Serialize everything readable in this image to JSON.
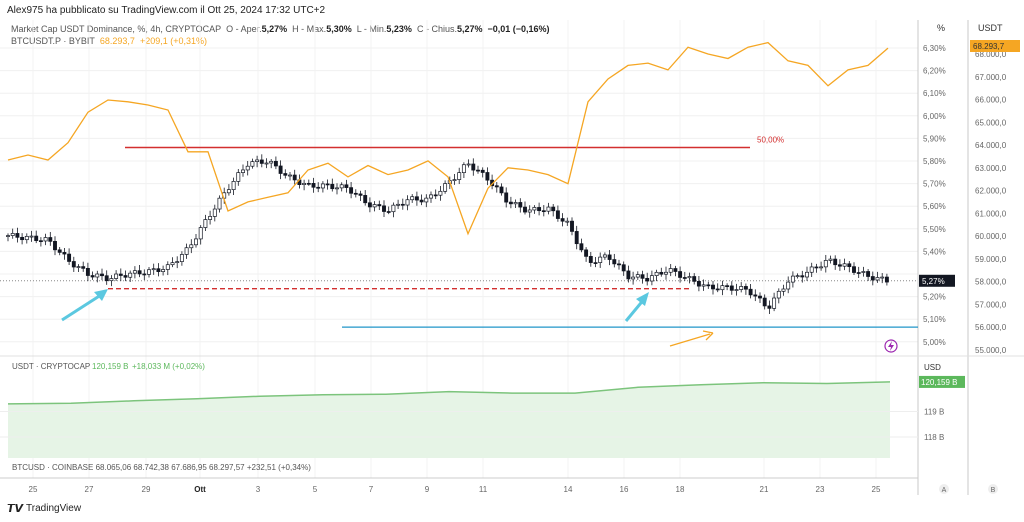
{
  "header": {
    "published": "Alex975 ha pubblicato su TradingView.com il Ott 25, 2024 17:32 UTC+2"
  },
  "main_legend": {
    "symbol": "Market Cap USDT Dominance, %, 4h, CRYPTOCAP",
    "o_label": "O - Aper.",
    "o": "5,27%",
    "h_label": "H - Max.",
    "h": "5,30%",
    "l_label": "L - Min.",
    "l": "5,23%",
    "c_label": "C - Chius.",
    "c": "5,27%",
    "change": "−0,01 (−0,16%)"
  },
  "btc_legend": {
    "symbol": "BTCUSDT.P · BYBIT",
    "price": "68.293,7",
    "change": "+209,1 (+0,31%)"
  },
  "pct_axis": {
    "title": "%",
    "ticks": [
      "6,30%",
      "6,20%",
      "6,10%",
      "6,00%",
      "5,90%",
      "5,80%",
      "5,70%",
      "5,60%",
      "5,50%",
      "5,40%",
      "5,30%",
      "5,20%",
      "5,10%",
      "5,00%"
    ],
    "current": "5,27%"
  },
  "usdt_axis": {
    "title": "USDT",
    "ticks": [
      "68.000,0",
      "67.000,0",
      "66.000,0",
      "65.000,0",
      "64.000,0",
      "63.000,0",
      "62.000,0",
      "61.000,0",
      "60.000,0",
      "59.000,0",
      "58.000,0",
      "57.000,0",
      "56.000,0",
      "55.000,0"
    ],
    "current": "68.293,7"
  },
  "annotations": {
    "resistance_label": "50,00%",
    "resistance": 5.86,
    "support": 5.235,
    "blue_line": 5.065
  },
  "dominance_closes": [
    5.47,
    5.46,
    5.45,
    5.36,
    5.3,
    5.28,
    5.3,
    5.31,
    5.33,
    5.41,
    5.55,
    5.68,
    5.79,
    5.8,
    5.73,
    5.69,
    5.69,
    5.68,
    5.61,
    5.58,
    5.63,
    5.63,
    5.7,
    5.79,
    5.72,
    5.62,
    5.58,
    5.59,
    5.52,
    5.35,
    5.38,
    5.29,
    5.28,
    5.32,
    5.28,
    5.24,
    5.24,
    5.23,
    5.15,
    5.27,
    5.31,
    5.36,
    5.33,
    5.29,
    5.27
  ],
  "btc_closes": [
    63340,
    63560,
    63340,
    64100,
    65440,
    65980,
    65900,
    65760,
    65540,
    63700,
    63700,
    61100,
    61500,
    61700,
    61900,
    62900,
    63200,
    62600,
    63100,
    62700,
    62900,
    63300,
    62600,
    60100,
    62100,
    63000,
    62900,
    62700,
    62300,
    65900,
    66900,
    67500,
    67600,
    67300,
    68300,
    68000,
    67800,
    68300,
    68500,
    67700,
    67500,
    66600,
    67300,
    67500,
    68260
  ],
  "usdt_pane": {
    "legend_symbol": "USDT · CRYPTOCAP",
    "value": "120,159 B",
    "change": "+18,033 M (+0,02%)",
    "axis_title": "USD",
    "ticks": [
      "119 B",
      "118 B"
    ],
    "current": "120,159 B",
    "series_b": [
      119.3,
      119.32,
      119.42,
      119.5,
      119.6,
      119.66,
      119.68,
      119.78,
      119.72,
      119.72,
      119.95,
      120.05,
      120.13,
      120.1,
      120.16
    ]
  },
  "btc_footer": {
    "text": "BTCUSD · COINBASE  68.065,06  68.742,38  67.686,95  68.297,57  +232,51 (+0,34%)"
  },
  "time_axis": [
    "25",
    "27",
    "29",
    "Ott",
    "3",
    "5",
    "7",
    "9",
    "11",
    "14",
    "16",
    "18",
    "21",
    "23",
    "25"
  ],
  "scale_buttons": {
    "auto": "A",
    "log": "B"
  },
  "brand": "TradingView",
  "colors": {
    "up": "#ffffff",
    "down": "#131722",
    "btc_line": "#f5a623",
    "resistance": "#d32f2f",
    "blue": "#2196c9",
    "arrow_cyan": "#5bc8e0",
    "usdt_area": "#7cc47c"
  }
}
